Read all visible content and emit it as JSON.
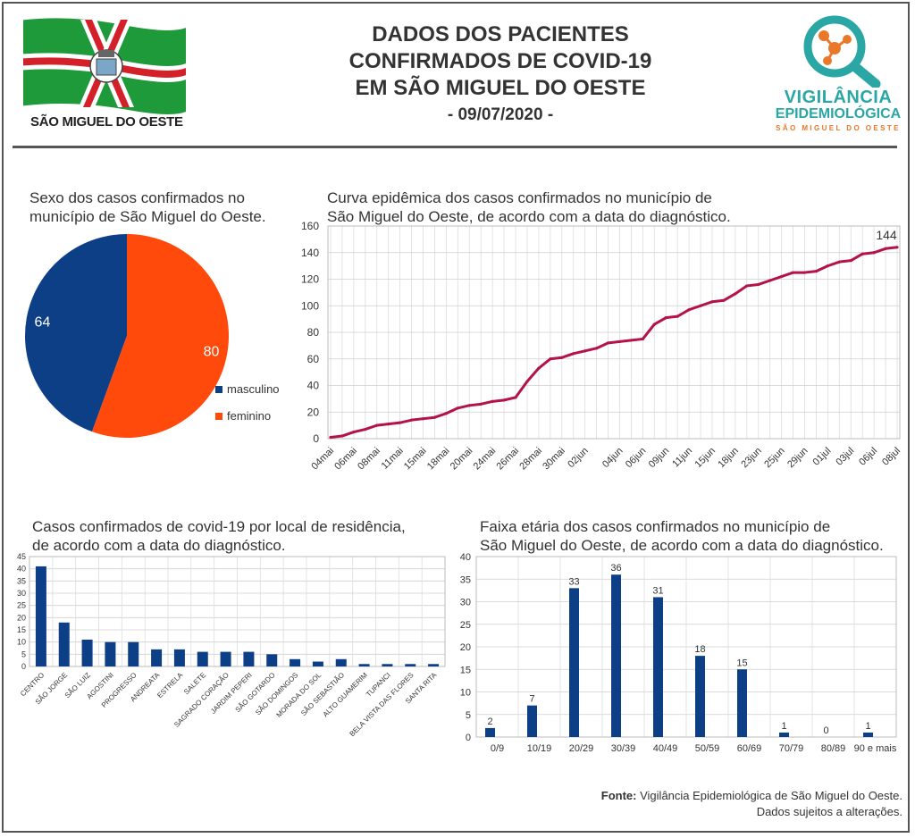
{
  "header": {
    "title_lines": [
      "DADOS DOS PACIENTES",
      "CONFIRMADOS DE COVID-19",
      "EM SÃO MIGUEL DO OESTE"
    ],
    "date": "- 09/07/2020 -",
    "city_logo_text": "SÃO MIGUEL DO OESTE",
    "agency_logo": {
      "line1": "VIGILÂNCIA",
      "line2": "EPIDEMIOLÓGICA",
      "line3": "SÃO MIGUEL DO OESTE"
    }
  },
  "colors": {
    "masculino": "#0d3f87",
    "feminino": "#ff4a0c",
    "curve": "#b3124a",
    "bar": "#0d3f87",
    "flag_green": "#1f9a3a",
    "flag_red": "#d42029",
    "teal": "#2aa7a4",
    "orange": "#e9782a"
  },
  "footer": {
    "source_label": "Fonte:",
    "source_text": "Vigilância Epidemiológica de São Miguel do Oeste.",
    "note": "Dados sujeitos a alterações."
  },
  "chart_data": [
    {
      "type": "pie",
      "title_lines": [
        "Sexo dos casos confirmados no",
        "município de São Miguel do Oeste."
      ],
      "labels": [
        "masculino",
        "feminino"
      ],
      "values": [
        64,
        80
      ],
      "legend": "right"
    },
    {
      "type": "line",
      "title_lines": [
        "Curva epidêmica dos casos confirmados no município de",
        "São Miguel do Oeste, de acordo com a data do diagnóstico."
      ],
      "x_ticks": [
        "04mai",
        "06mai",
        "08mai",
        "11mai",
        "15mai",
        "18mai",
        "20mai",
        "24mai",
        "26mai",
        "28mai",
        "30mai",
        "02jun",
        "04jun",
        "06jun",
        "09jun",
        "11jun",
        "15jun",
        "18jun",
        "23jun",
        "25jun",
        "29jun",
        "01jul",
        "03jul",
        "06jul",
        "08jul"
      ],
      "values": [
        1,
        2,
        5,
        7,
        10,
        11,
        12,
        14,
        15,
        16,
        19,
        23,
        25,
        26,
        28,
        29,
        31,
        43,
        53,
        60,
        61,
        64,
        66,
        68,
        72,
        73,
        74,
        75,
        86,
        91,
        92,
        97,
        100,
        103,
        104,
        109,
        115,
        116,
        119,
        122,
        125,
        125,
        126,
        130,
        133,
        134,
        139,
        140,
        143,
        144
      ],
      "last_label": "144",
      "ylim": [
        0,
        160
      ],
      "y_ticks": [
        0,
        20,
        40,
        60,
        80,
        100,
        120,
        140,
        160
      ],
      "grid": true
    },
    {
      "type": "bar",
      "title_lines": [
        "Casos confirmados de covid-19 por local de residência,",
        "de acordo com a data do diagnóstico."
      ],
      "categories": [
        "CENTRO",
        "SÃO JORGE",
        "SÃO LUIZ",
        "AGOSTINI",
        "PROGRESSO",
        "ANDREATA",
        "ESTRELA",
        "SALETE",
        "SAGRADO CORAÇÃO",
        "JARDIM PEPERI",
        "SÃO GOTARDO",
        "SÃO DOMINGOS",
        "MORADA DO SOL",
        "SÃO SEBASTIÃO",
        "ALTO GUAMERIM",
        "TUPANCI",
        "BELA VISTA DAS FLORES",
        "SANTA RITA"
      ],
      "values": [
        41,
        18,
        11,
        10,
        10,
        7,
        7,
        6,
        6,
        6,
        5,
        3,
        2,
        3,
        1,
        1,
        1,
        1
      ],
      "ylim": [
        0,
        45
      ],
      "y_ticks": [
        0,
        5,
        10,
        15,
        20,
        25,
        30,
        35,
        40,
        45
      ],
      "grid": true
    },
    {
      "type": "bar",
      "title_lines": [
        "Faixa etária dos casos confirmados no município de",
        "São Miguel do Oeste, de acordo com a data do diagnóstico."
      ],
      "categories": [
        "0/9",
        "10/19",
        "20/29",
        "30/39",
        "40/49",
        "50/59",
        "60/69",
        "70/79",
        "80/89",
        "90 e mais"
      ],
      "values": [
        2,
        7,
        33,
        36,
        31,
        18,
        15,
        1,
        0,
        1
      ],
      "value_labels": [
        "2",
        "7",
        "33",
        "36",
        "31",
        "18",
        "15",
        "1",
        "0",
        "1"
      ],
      "ylim": [
        0,
        40
      ],
      "y_ticks": [
        0,
        5,
        10,
        15,
        20,
        25,
        30,
        35,
        40
      ],
      "grid": true
    }
  ]
}
